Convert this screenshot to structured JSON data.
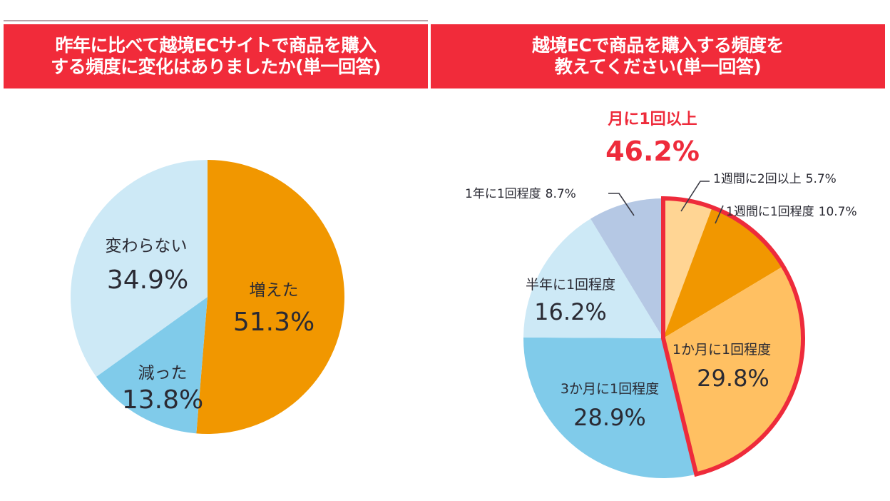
{
  "colors": {
    "title_bg": "#f12b3a",
    "highlight": "#ee2b3b",
    "text": "#2a2a33"
  },
  "chart_data": [
    {
      "type": "pie",
      "title_lines": [
        "昨年に比べて越境ECサイトで商品を購入",
        "する頻度に変化はありましたか(単一回答)"
      ],
      "start_angle": "12 o'clock, clockwise",
      "slices": [
        {
          "label": "増えた",
          "value": 51.3,
          "value_text": "51.3%",
          "color": "#f19700"
        },
        {
          "label": "減った",
          "value": 13.8,
          "value_text": "13.8%",
          "color": "#80cbea"
        },
        {
          "label": "変わらない",
          "value": 34.9,
          "value_text": "34.9%",
          "color": "#cde9f6"
        }
      ],
      "unit": "%"
    },
    {
      "type": "pie",
      "title_lines": [
        "越境ECで商品を購入する頻度を",
        "教えてください(単一回答)"
      ],
      "start_angle": "12 o'clock, clockwise",
      "highlight": {
        "label": "月に1回以上",
        "value": 46.2,
        "value_text": "46.2%",
        "includes": [
          "1週間に2回以上",
          "1週間に1回程度",
          "1か月に1回程度"
        ]
      },
      "slices": [
        {
          "label": "1週間に2回以上",
          "value": 5.7,
          "value_text": "5.7%",
          "color": "#ffd594",
          "label_style": "callout"
        },
        {
          "label": "1週間に1回程度",
          "value": 10.7,
          "value_text": "10.7%",
          "color": "#f19700",
          "label_style": "callout"
        },
        {
          "label": "1か月に1回程度",
          "value": 29.8,
          "value_text": "29.8%",
          "color": "#ffc062",
          "label_style": "inside"
        },
        {
          "label": "3か月に1回程度",
          "value": 28.9,
          "value_text": "28.9%",
          "color": "#80cbea",
          "label_style": "inside"
        },
        {
          "label": "半年に1回程度",
          "value": 16.2,
          "value_text": "16.2%",
          "color": "#cde9f6",
          "label_style": "inside"
        },
        {
          "label": "1年に1回程度",
          "value": 8.7,
          "value_text": "8.7%",
          "color": "#b5c8e4",
          "label_style": "callout"
        }
      ],
      "unit": "%"
    }
  ]
}
